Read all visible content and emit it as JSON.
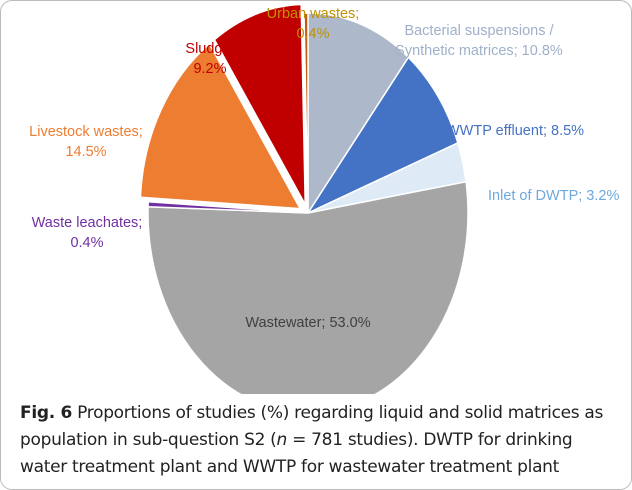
{
  "chart_data": {
    "type": "pie",
    "values": [
      10.8,
      8.5,
      3.2,
      53.0,
      0.4,
      14.5,
      9.2,
      0.4
    ],
    "labels": [
      [
        "Bacterial suspensions /",
        "Synthetic matrices; 10.8%"
      ],
      [
        "WWTP effluent; 8.5%"
      ],
      [
        "Inlet of DWTP; 3.2%"
      ],
      [
        "Wastewater; 53.0%"
      ],
      [
        "Waste leachates;",
        "0.4%"
      ],
      [
        "Livestock wastes;",
        "14.5%"
      ],
      [
        "Sludge;",
        "9.2%"
      ],
      [
        "Urban wastes;",
        "0.4%"
      ]
    ],
    "colors": [
      "#adb9ca",
      "#4472c4",
      "#deebf7",
      "#a5a5a5",
      "#7030a0",
      "#ed7d31",
      "#c00000",
      "#c55a11"
    ],
    "label_colors": [
      "#9fb0c8",
      "#4472c4",
      "#6fa8dc",
      "#404040",
      "#7030a0",
      "#ed7d31",
      "#c00000",
      "#bf9000"
    ],
    "exploded": [
      false,
      false,
      false,
      false,
      false,
      true,
      true,
      false
    ]
  },
  "caption": {
    "label": "Fig. 6",
    "text_before": "Proportions of studies (%) regarding liquid and solid matrices as population in sub-question S2 (",
    "variable": "n",
    "text_after": " = 781 studies). DWTP for drinking water treatment plant and WWTP for wastewater treatment plant"
  }
}
